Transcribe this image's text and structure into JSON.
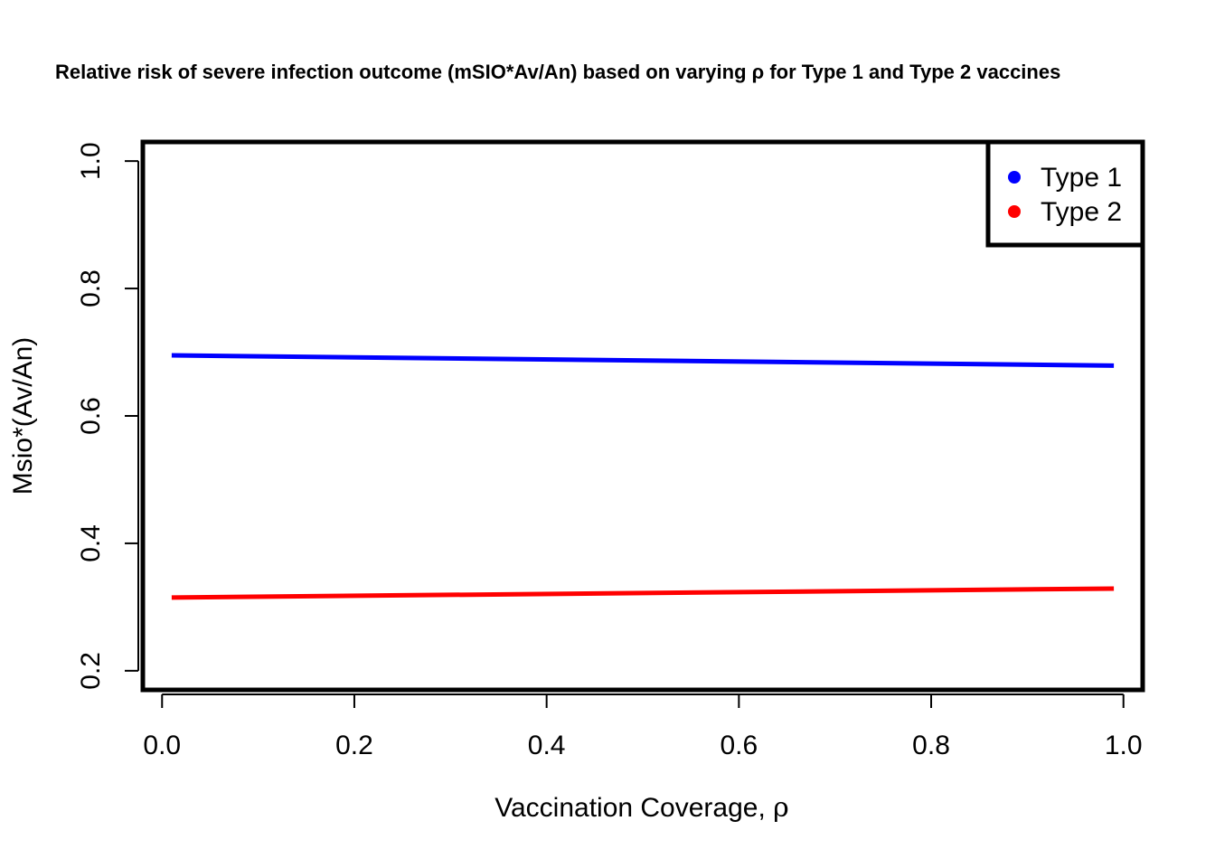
{
  "chart_data": {
    "type": "line",
    "title": "Relative risk of severe infection outcome (mSIO*Av/An) based on varying ρ for Type 1 and Type 2 vaccines",
    "xlabel": "Vaccination Coverage,  ",
    "xlabel_symbol": "ρ",
    "ylabel": "Msio*(Av/An)",
    "xlim": [
      -0.02,
      1.02
    ],
    "ylim": [
      0.17,
      1.03
    ],
    "xticks": [
      "0.0",
      "0.2",
      "0.4",
      "0.6",
      "0.8",
      "1.0"
    ],
    "yticks": [
      "0.2",
      "0.4",
      "0.6",
      "0.8",
      "1.0"
    ],
    "grid": false,
    "legend_position": "top-right",
    "series": [
      {
        "name": "Type 1",
        "color": "#0000ff",
        "x": [
          0.01,
          0.99
        ],
        "y": [
          0.695,
          0.679
        ]
      },
      {
        "name": "Type 2",
        "color": "#ff0000",
        "x": [
          0.01,
          0.99
        ],
        "y": [
          0.315,
          0.329
        ]
      }
    ]
  }
}
